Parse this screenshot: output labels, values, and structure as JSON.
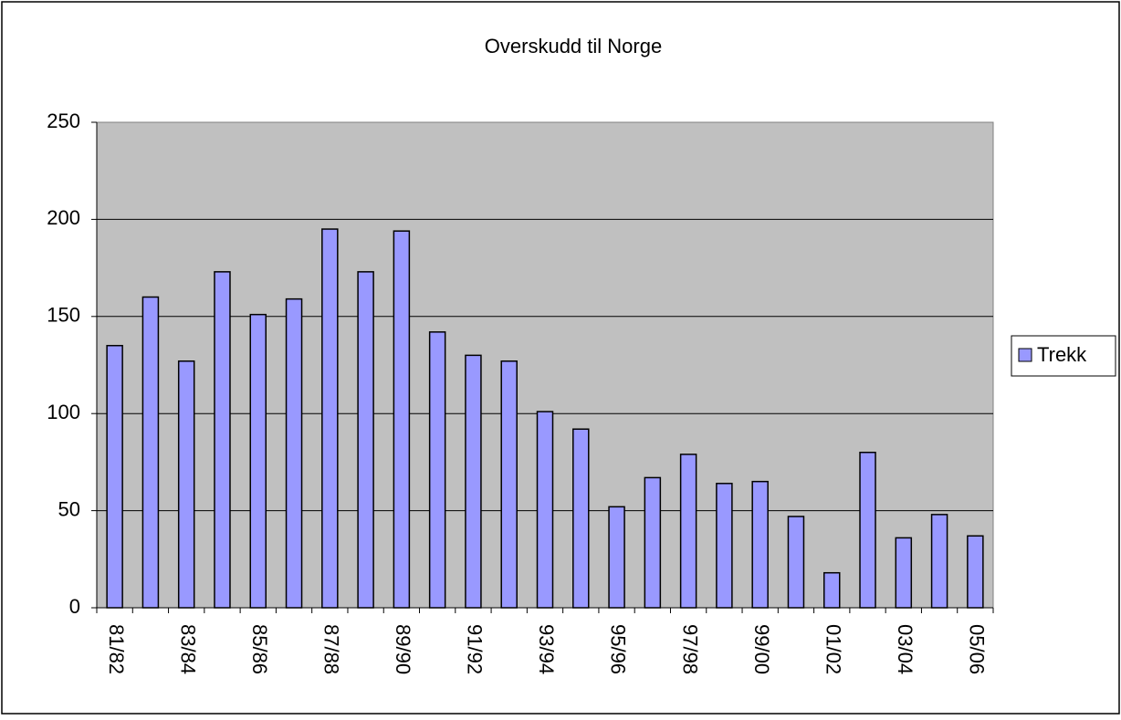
{
  "chart_data": {
    "type": "bar",
    "title": "Overskudd til Norge",
    "categories": [
      "81/82",
      null,
      "83/84",
      null,
      "85/86",
      null,
      "87/88",
      null,
      "89/90",
      null,
      "91/92",
      null,
      "93/94",
      null,
      "95/96",
      null,
      "97/98",
      null,
      "99/00",
      null,
      "01/02",
      null,
      "03/04",
      null,
      "05/06"
    ],
    "series": [
      {
        "name": "Trekk",
        "color": "#9999ff",
        "values": [
          135,
          160,
          127,
          173,
          151,
          159,
          195,
          173,
          194,
          142,
          130,
          127,
          101,
          92,
          52,
          67,
          79,
          64,
          65,
          47,
          18,
          80,
          36,
          48,
          37
        ]
      }
    ],
    "ylim": [
      0,
      250
    ],
    "yticks": [
      0,
      50,
      100,
      150,
      200,
      250
    ],
    "grid": true,
    "legend": "right"
  }
}
